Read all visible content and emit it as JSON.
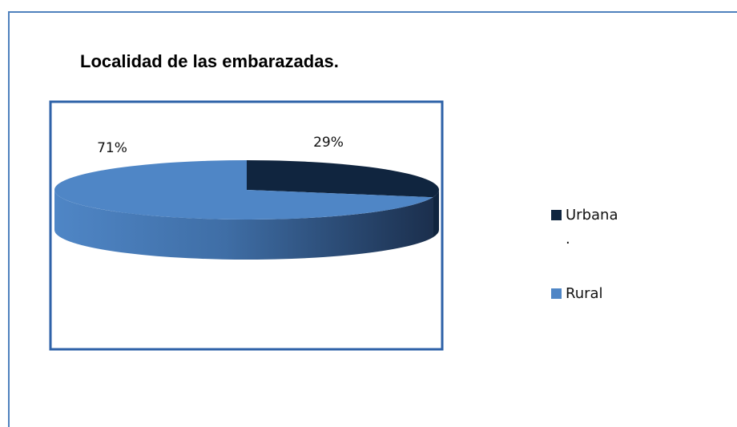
{
  "chart_data": {
    "type": "pie",
    "title": "Localidad de las  embarazadas.",
    "categories": [
      "Urbana\n.",
      "Rural"
    ],
    "values": [
      29,
      71
    ],
    "value_labels": [
      "29%",
      "71%"
    ],
    "colors": [
      "#10253f",
      "#4f86c6"
    ],
    "legend": "right"
  }
}
